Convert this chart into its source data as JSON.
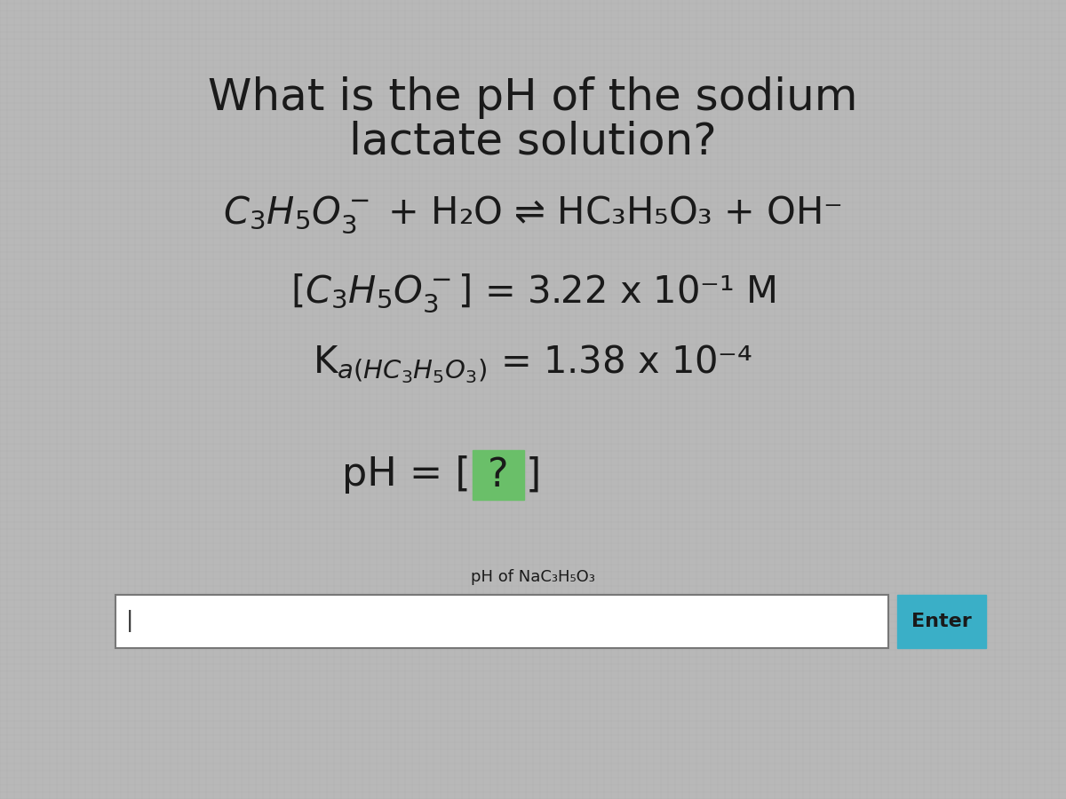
{
  "background_color": "#b8b8b8",
  "title_line1": "What is the pH of the sodium",
  "title_line2": "lactate solution?",
  "title_fontsize": 36,
  "text_color": "#1a1a1a",
  "eq_fontsize": 30,
  "box_green_color": "#6abf69",
  "enter_button_color": "#3aafc7",
  "enter_text": "Enter",
  "input_label": "pH of NaC",
  "subscript_353": "3  5  3",
  "cursor_char": "|"
}
